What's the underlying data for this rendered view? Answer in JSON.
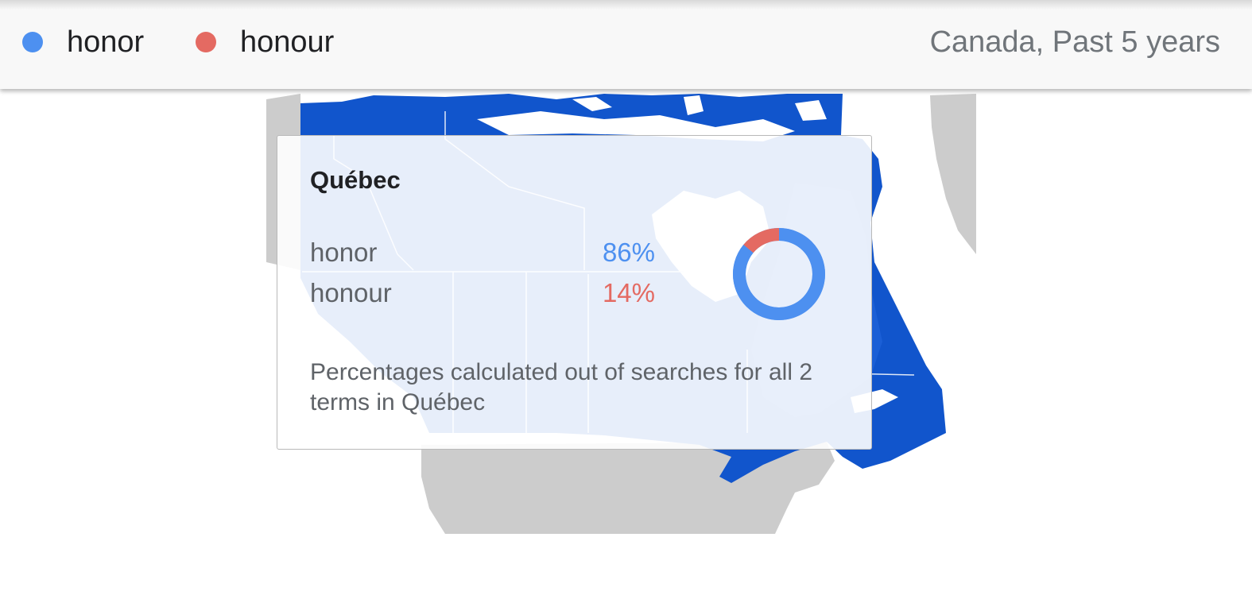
{
  "legend": {
    "terms": [
      {
        "label": "honor",
        "color": "#4d90f0"
      },
      {
        "label": "honour",
        "color": "#e46a62"
      }
    ],
    "region_period": "Canada, Past 5 years"
  },
  "map": {
    "colors": {
      "dominant_region": "#1155cc",
      "mid_region": "#2a67e0",
      "no_data": "#cccccc",
      "water": "#ffffff",
      "border": "#e8eef8"
    }
  },
  "tooltip": {
    "region": "Québec",
    "rows": [
      {
        "term": "honor",
        "percent": "86%",
        "value": 86,
        "color": "#4d90f0"
      },
      {
        "term": "honour",
        "percent": "14%",
        "value": 14,
        "color": "#e46a62"
      }
    ],
    "note": "Percentages calculated out of searches for all 2 terms in Québec"
  }
}
